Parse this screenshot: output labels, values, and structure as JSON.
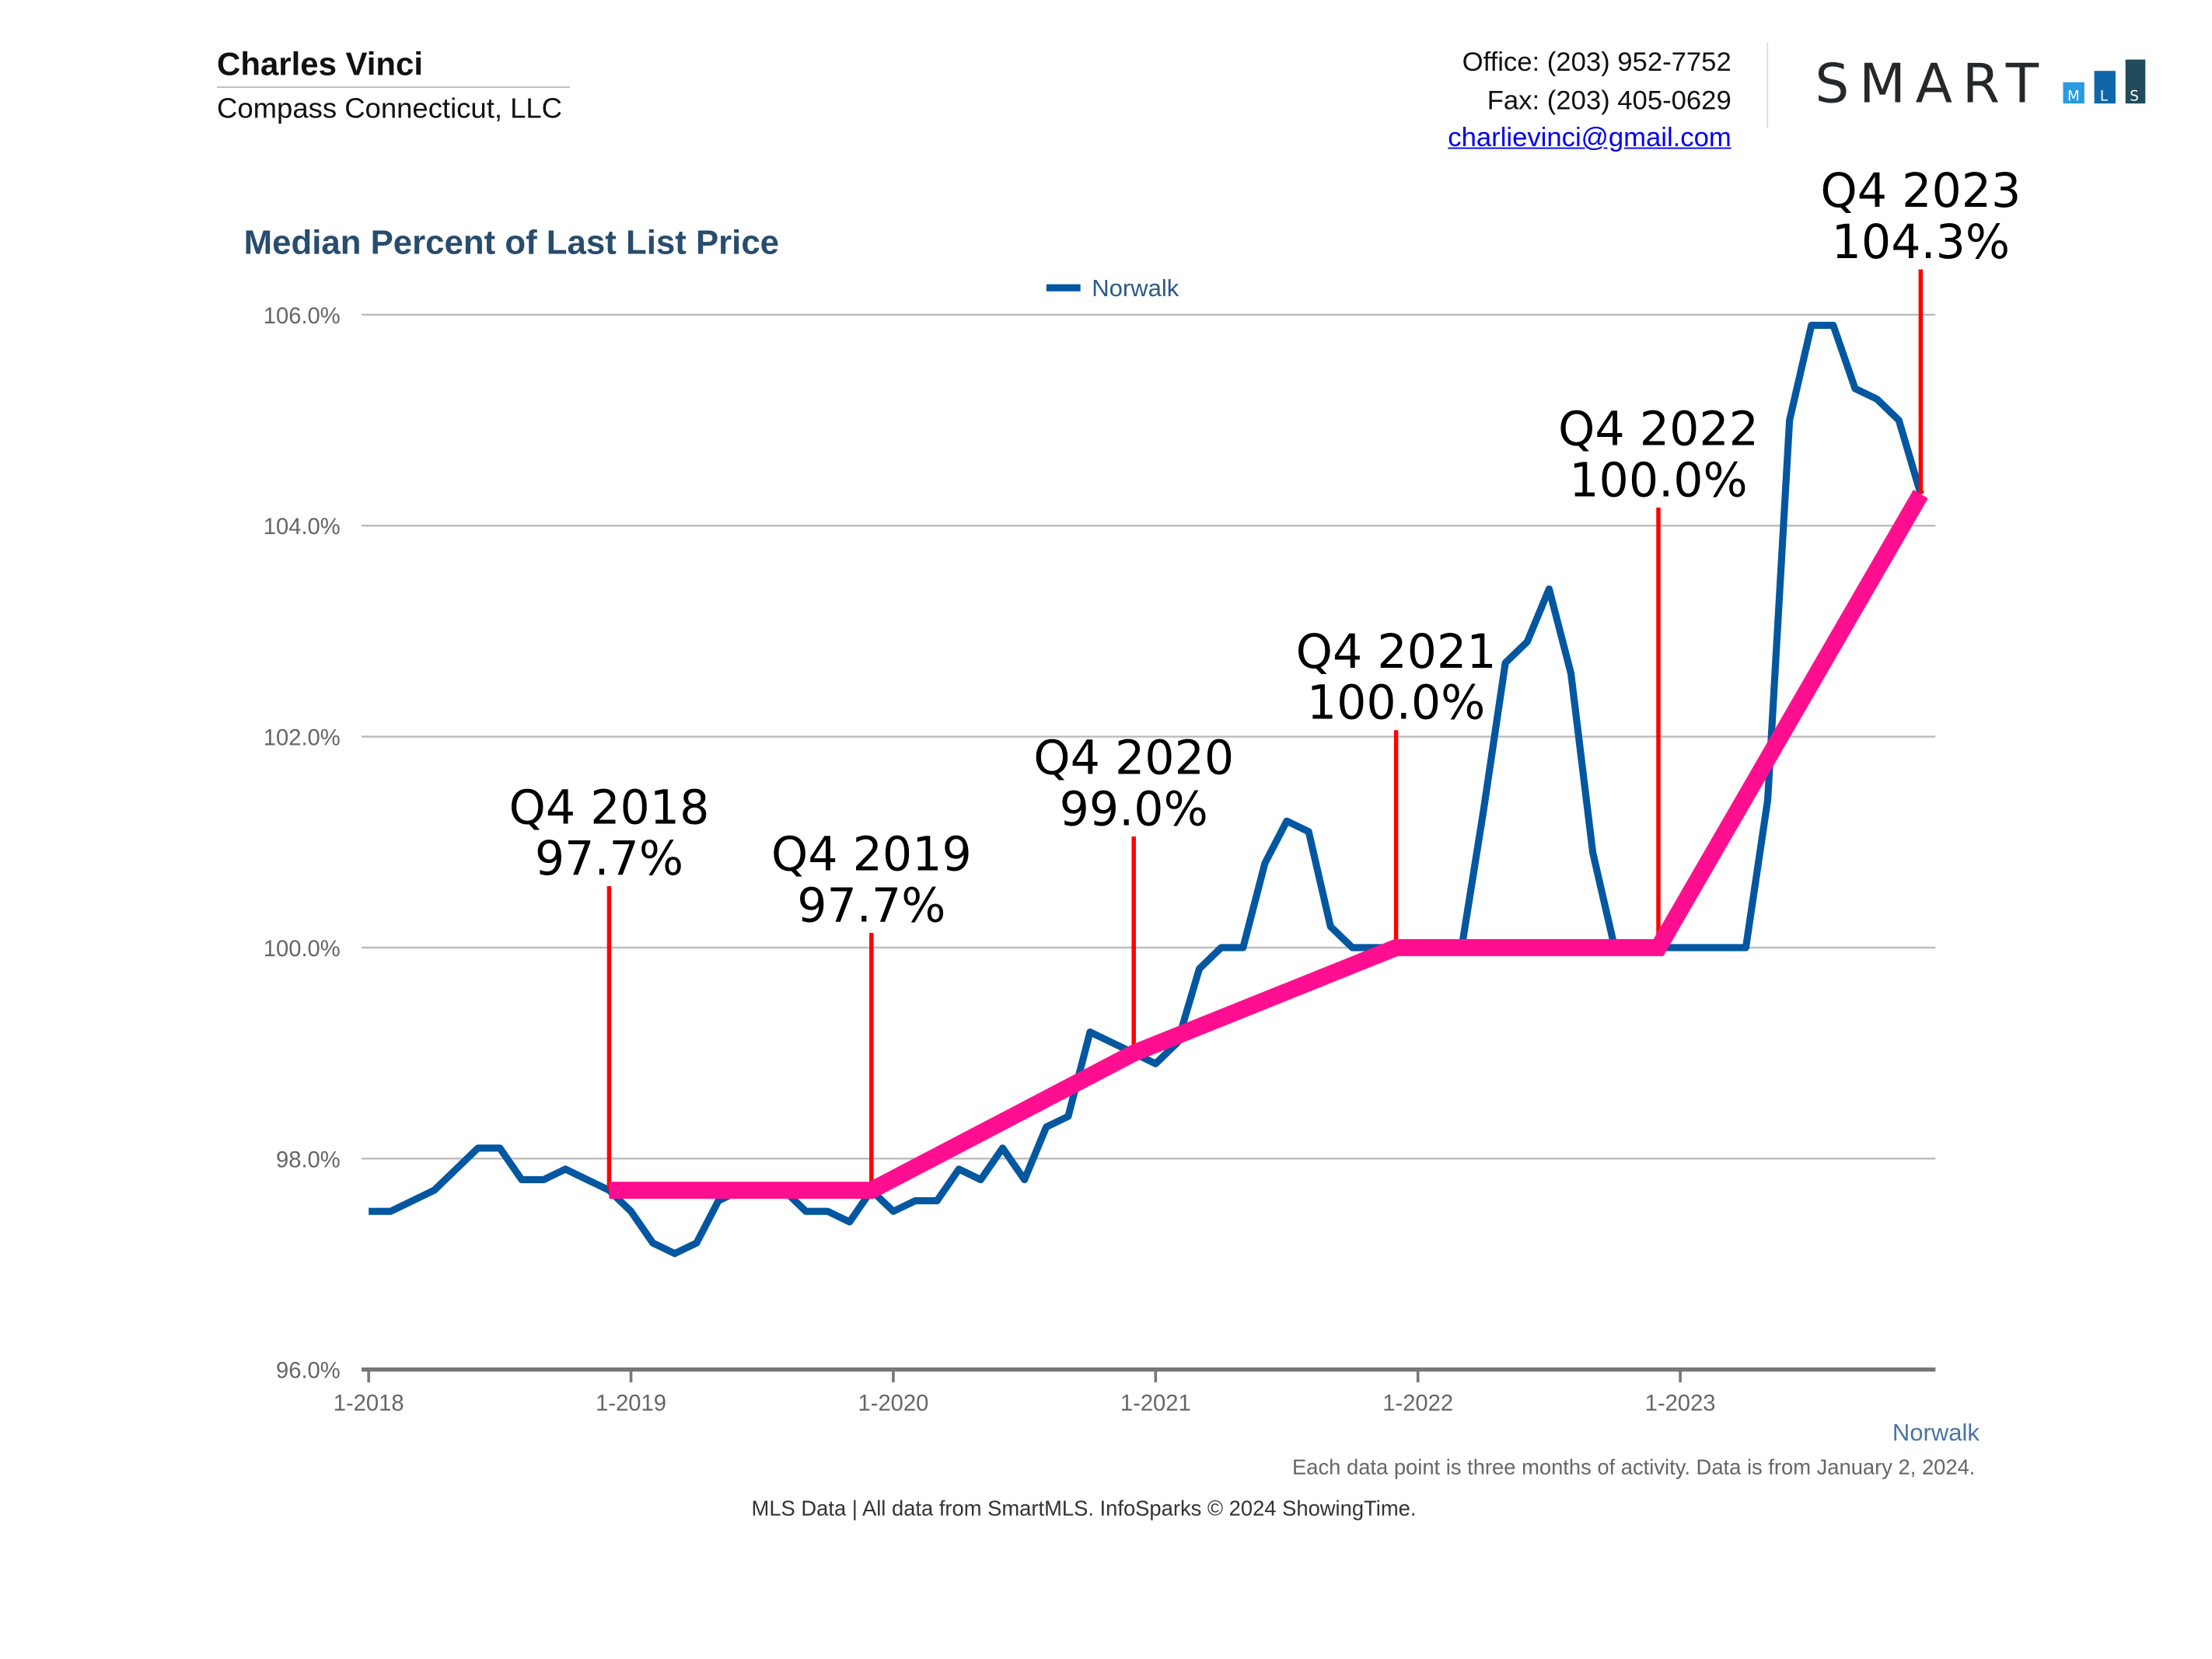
{
  "header": {
    "agent_name": "Charles Vinci",
    "company": "Compass Connecticut, LLC",
    "office": "Office: (203) 952-7752",
    "fax": "Fax: (203) 405-0629",
    "email": "charlievinci@gmail.com",
    "logo_text": "SMART MLS"
  },
  "footer": {
    "region_label": "Norwalk",
    "note": "Each data point is three months of activity. Data is from January 2, 2024.",
    "source": "MLS Data | All data from SmartMLS. InfoSparks © 2024 ShowingTime."
  },
  "chart_data": {
    "type": "line",
    "title": "Median Percent of Last List Price",
    "legend": {
      "position": "top-center",
      "entries": [
        "Norwalk"
      ]
    },
    "grid": true,
    "ylim": [
      96.0,
      106.0
    ],
    "y_ticks": [
      "96.0%",
      "98.0%",
      "100.0%",
      "102.0%",
      "104.0%",
      "106.0%"
    ],
    "x_ticks": [
      "1-2018",
      "1-2019",
      "1-2020",
      "1-2021",
      "1-2022",
      "1-2023"
    ],
    "x": [
      "2018-01",
      "2018-02",
      "2018-03",
      "2018-04",
      "2018-05",
      "2018-06",
      "2018-07",
      "2018-08",
      "2018-09",
      "2018-10",
      "2018-11",
      "2018-12",
      "2019-01",
      "2019-02",
      "2019-03",
      "2019-04",
      "2019-05",
      "2019-06",
      "2019-07",
      "2019-08",
      "2019-09",
      "2019-10",
      "2019-11",
      "2019-12",
      "2020-01",
      "2020-02",
      "2020-03",
      "2020-04",
      "2020-05",
      "2020-06",
      "2020-07",
      "2020-08",
      "2020-09",
      "2020-10",
      "2020-11",
      "2020-12",
      "2021-01",
      "2021-02",
      "2021-03",
      "2021-04",
      "2021-05",
      "2021-06",
      "2021-07",
      "2021-08",
      "2021-09",
      "2021-10",
      "2021-11",
      "2021-12",
      "2022-01",
      "2022-02",
      "2022-03",
      "2022-04",
      "2022-05",
      "2022-06",
      "2022-07",
      "2022-08",
      "2022-09",
      "2022-10",
      "2022-11",
      "2022-12",
      "2023-01",
      "2023-02",
      "2023-03",
      "2023-04",
      "2023-05",
      "2023-06",
      "2023-07",
      "2023-08",
      "2023-09",
      "2023-10",
      "2023-11",
      "2023-12"
    ],
    "series": [
      {
        "name": "Norwalk",
        "color": "#0257a0",
        "values": [
          97.5,
          97.5,
          97.6,
          97.7,
          97.9,
          98.1,
          98.1,
          97.8,
          97.8,
          97.9,
          97.8,
          97.7,
          97.5,
          97.2,
          97.1,
          97.2,
          97.6,
          97.7,
          97.7,
          97.7,
          97.5,
          97.5,
          97.4,
          97.7,
          97.5,
          97.6,
          97.6,
          97.9,
          97.8,
          98.1,
          97.8,
          98.3,
          98.4,
          99.2,
          99.1,
          99.0,
          98.9,
          99.1,
          99.8,
          100.0,
          100.0,
          100.8,
          101.2,
          101.1,
          100.2,
          100.0,
          100.0,
          100.0,
          100.0,
          100.0,
          100.0,
          101.3,
          102.7,
          102.9,
          103.4,
          102.6,
          100.9,
          100.0,
          100.0,
          100.0,
          100.0,
          100.0,
          100.0,
          100.0,
          101.4,
          105.0,
          105.9,
          105.9,
          105.3,
          105.2,
          105.0,
          104.3
        ]
      }
    ],
    "annotations": {
      "color_line": "#ff0f8f",
      "color_marker": "#ff0000",
      "points": [
        {
          "x": "2018-12",
          "label": "Q4 2018",
          "value_label": "97.7%",
          "value": 97.7
        },
        {
          "x": "2019-12",
          "label": "Q4 2019",
          "value_label": "97.7%",
          "value": 97.7
        },
        {
          "x": "2020-12",
          "label": "Q4 2020",
          "value_label": "99.0%",
          "value": 99.0
        },
        {
          "x": "2021-12",
          "label": "Q4 2021",
          "value_label": "100.0%",
          "value": 100.0
        },
        {
          "x": "2022-12",
          "label": "Q4 2022",
          "value_label": "100.0%",
          "value": 100.0
        },
        {
          "x": "2023-12",
          "label": "Q4 2023",
          "value_label": "104.3%",
          "value": 104.3
        }
      ]
    }
  }
}
